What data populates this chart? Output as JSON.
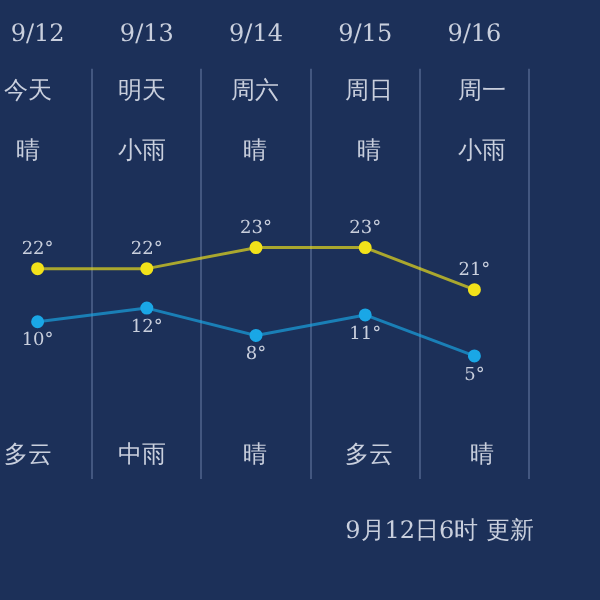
{
  "chart_data": {
    "type": "line",
    "categories": [
      "9/12",
      "9/13",
      "9/14",
      "9/15",
      "9/16"
    ],
    "series": [
      {
        "color": "#f2e21a",
        "values": [
          22,
          22,
          23,
          23,
          21
        ],
        "value_labels": [
          "22°",
          "22°",
          "23°",
          "23°",
          "21°"
        ]
      },
      {
        "color": "#1aa7e6",
        "axis": "y2",
        "values": [
          10,
          12,
          8,
          11,
          5
        ],
        "value_labels": [
          "10°",
          "12°",
          "8°",
          "11°",
          "5°"
        ]
      }
    ],
    "ylim": [
      12,
      31.5
    ],
    "y2lim": [
      -13,
      47
    ],
    "tick_labels": "x",
    "grid": "x",
    "legend": false,
    "marker": "circle",
    "line_style": "solid",
    "annotations": [
      "今天",
      "明天",
      "周六",
      "周日",
      "周一",
      "晴",
      "小雨",
      "晴",
      "晴",
      "小雨",
      "多云",
      "中雨",
      "晴",
      "多云",
      "晴",
      "9月12日6时 更新"
    ]
  }
}
